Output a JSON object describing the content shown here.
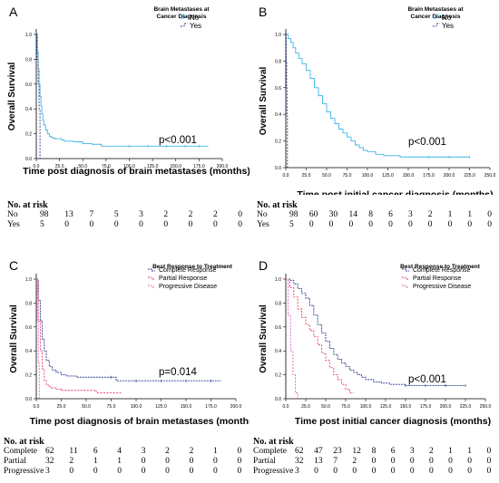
{
  "panels": [
    {
      "letter": "A",
      "legend_title": [
        "Brain Metastases at",
        "Cancer Diagnosis"
      ],
      "legend_items": [
        "No",
        "Yes"
      ],
      "ylabel": "Overall Survival",
      "xlabel": "Time post diagnosis of brain metastases (months)",
      "pvalue": "p<0.001",
      "x_ticks": [
        "0.0",
        "25.0",
        "50.0",
        "75.0",
        "100.0",
        "125.0",
        "150.0",
        "175.0",
        "200.0"
      ],
      "y_ticks": [
        "0.0",
        "0.2",
        "0.4",
        "0.6",
        "0.8",
        "1.0"
      ],
      "risk": {
        "title": "No. at risk",
        "rows": [
          {
            "label": "No",
            "values": [
              "98",
              "13",
              "7",
              "5",
              "3",
              "2",
              "2",
              "2",
              "0"
            ]
          },
          {
            "label": "Yes",
            "values": [
              "5",
              "0",
              "0",
              "0",
              "0",
              "0",
              "0",
              "0",
              "0"
            ]
          }
        ]
      }
    },
    {
      "letter": "B",
      "legend_title": [
        "Brain Metastases at",
        "Cancer Diagnosis"
      ],
      "legend_items": [
        "No",
        "Yes"
      ],
      "ylabel": "Overall Survival",
      "xlabel": "Time post initial cancer diagnosis (months)",
      "pvalue": "p<0.001",
      "x_ticks": [
        "0.0",
        "25.0",
        "50.0",
        "75.0",
        "100.0",
        "125.0",
        "150.0",
        "175.0",
        "200.0",
        "225.0",
        "250.0"
      ],
      "y_ticks": [
        "0.0",
        "0.2",
        "0.4",
        "0.6",
        "0.8",
        "1.0"
      ],
      "risk": {
        "title": "No. at risk",
        "rows": [
          {
            "label": "No",
            "values": [
              "98",
              "60",
              "30",
              "14",
              "8",
              "6",
              "3",
              "2",
              "1",
              "1",
              "0"
            ]
          },
          {
            "label": "Yes",
            "values": [
              "5",
              "0",
              "0",
              "0",
              "0",
              "0",
              "0",
              "0",
              "0",
              "0",
              "0"
            ]
          }
        ]
      }
    },
    {
      "letter": "C",
      "legend_title": [
        "Best Response to Treatment"
      ],
      "legend_items": [
        "Complete Response",
        "Partial Response",
        "Progressive Disease"
      ],
      "ylabel": "Overall Survival",
      "xlabel": "Time post diagnosis of brain metastases (months)",
      "pvalue": "p=0.014",
      "x_ticks": [
        "0.0",
        "25.0",
        "50.0",
        "75.0",
        "100.0",
        "125.0",
        "150.0",
        "175.0",
        "200.0"
      ],
      "y_ticks": [
        "0.0",
        "0.2",
        "0.4",
        "0.6",
        "0.8",
        "1.0"
      ],
      "risk": {
        "title": "No. at risk",
        "rows": [
          {
            "label": "Complete",
            "values": [
              "62",
              "11",
              "6",
              "4",
              "3",
              "2",
              "2",
              "1",
              "0"
            ]
          },
          {
            "label": "Partial",
            "values": [
              "32",
              "2",
              "1",
              "1",
              "0",
              "0",
              "0",
              "0",
              "0"
            ]
          },
          {
            "label": "Progressive",
            "values": [
              "3",
              "0",
              "0",
              "0",
              "0",
              "0",
              "0",
              "0",
              "0"
            ]
          }
        ]
      }
    },
    {
      "letter": "D",
      "legend_title": [
        "Best Response to Treatment"
      ],
      "legend_items": [
        "Complete Response",
        "Partial Response",
        "Progressive Disease"
      ],
      "ylabel": "Overall Survival",
      "xlabel": "Time post initial cancer diagnosis (months)",
      "pvalue": "p<0.001",
      "x_ticks": [
        "0.0",
        "25.0",
        "50.0",
        "75.0",
        "100.0",
        "125.0",
        "150.0",
        "175.0",
        "200.0",
        "225.0",
        "250.0"
      ],
      "y_ticks": [
        "0.0",
        "0.2",
        "0.4",
        "0.6",
        "0.8",
        "1.0"
      ],
      "risk": {
        "title": "No. at risk",
        "rows": [
          {
            "label": "Complete",
            "values": [
              "62",
              "47",
              "23",
              "12",
              "8",
              "6",
              "3",
              "2",
              "1",
              "1",
              "0"
            ]
          },
          {
            "label": "Partial",
            "values": [
              "32",
              "13",
              "7",
              "2",
              "0",
              "0",
              "0",
              "0",
              "0",
              "0",
              "0"
            ]
          },
          {
            "label": "Progressive",
            "values": [
              "3",
              "0",
              "0",
              "0",
              "0",
              "0",
              "0",
              "0",
              "0",
              "0",
              "0"
            ]
          }
        ]
      }
    }
  ],
  "chart_data": [
    {
      "type": "line",
      "title": "",
      "xlabel": "Time post diagnosis of brain metastases (months)",
      "ylabel": "Overall Survival",
      "xlim": [
        0,
        200
      ],
      "ylim": [
        0,
        1
      ],
      "colors": [
        "#3eb5e6",
        "#283c8c"
      ],
      "series": [
        {
          "name": "No",
          "x": [
            0,
            1,
            2,
            3,
            4,
            5,
            6,
            7,
            8,
            10,
            12,
            14,
            16,
            18,
            20,
            23,
            27,
            30,
            35,
            40,
            50,
            60,
            70,
            80,
            100,
            120,
            140,
            160,
            175,
            185
          ],
          "y": [
            1.0,
            0.86,
            0.72,
            0.6,
            0.5,
            0.42,
            0.36,
            0.31,
            0.27,
            0.23,
            0.2,
            0.18,
            0.17,
            0.165,
            0.16,
            0.16,
            0.15,
            0.14,
            0.14,
            0.135,
            0.12,
            0.115,
            0.1,
            0.1,
            0.1,
            0.1,
            0.1,
            0.1,
            0.1,
            0.1
          ]
        },
        {
          "name": "Yes",
          "x": [
            0,
            1,
            2,
            3,
            4
          ],
          "y": [
            1.0,
            0.8,
            0.6,
            0.4,
            0.0
          ]
        }
      ]
    },
    {
      "type": "line",
      "title": "",
      "xlabel": "Time post initial cancer diagnosis (months)",
      "ylabel": "Overall Survival",
      "xlim": [
        0,
        250
      ],
      "ylim": [
        0,
        1
      ],
      "colors": [
        "#3eb5e6",
        "#283c8c"
      ],
      "series": [
        {
          "name": "No",
          "x": [
            0,
            3,
            6,
            9,
            12,
            16,
            20,
            25,
            30,
            35,
            40,
            45,
            50,
            55,
            60,
            65,
            70,
            75,
            80,
            85,
            90,
            95,
            100,
            110,
            120,
            130,
            140,
            150,
            175,
            200,
            225
          ],
          "y": [
            1.0,
            0.97,
            0.94,
            0.9,
            0.86,
            0.82,
            0.78,
            0.73,
            0.67,
            0.6,
            0.54,
            0.48,
            0.42,
            0.37,
            0.33,
            0.29,
            0.26,
            0.23,
            0.2,
            0.17,
            0.15,
            0.13,
            0.12,
            0.1,
            0.09,
            0.09,
            0.08,
            0.08,
            0.08,
            0.08,
            0.08
          ]
        },
        {
          "name": "Yes",
          "x": [
            0,
            0.5,
            1,
            1.5,
            2
          ],
          "y": [
            1.0,
            0.8,
            0.6,
            0.4,
            0.0
          ]
        }
      ]
    },
    {
      "type": "line",
      "title": "",
      "xlabel": "Time post diagnosis of brain metastases (months)",
      "ylabel": "Overall Survival",
      "xlim": [
        0,
        200
      ],
      "ylim": [
        0,
        1
      ],
      "colors": [
        "#283c8c",
        "#e8336b",
        "#e060c0"
      ],
      "series": [
        {
          "name": "Complete Response",
          "x": [
            0,
            2,
            4,
            6,
            8,
            10,
            13,
            16,
            20,
            25,
            30,
            40,
            50,
            60,
            75,
            80,
            100,
            125,
            150,
            175,
            185
          ],
          "y": [
            1.0,
            0.82,
            0.65,
            0.5,
            0.4,
            0.32,
            0.27,
            0.24,
            0.22,
            0.2,
            0.19,
            0.18,
            0.18,
            0.18,
            0.18,
            0.15,
            0.15,
            0.15,
            0.15,
            0.15,
            0.15
          ]
        },
        {
          "name": "Partial Response",
          "x": [
            0,
            2,
            4,
            6,
            8,
            10,
            12,
            15,
            20,
            25,
            30,
            40,
            50,
            60,
            70,
            80,
            85
          ],
          "y": [
            1.0,
            0.65,
            0.4,
            0.25,
            0.15,
            0.12,
            0.1,
            0.09,
            0.08,
            0.07,
            0.07,
            0.07,
            0.07,
            0.05,
            0.05,
            0.05,
            0.05
          ]
        },
        {
          "name": "Progressive Disease",
          "x": [
            0,
            1,
            2,
            3
          ],
          "y": [
            1.0,
            0.65,
            0.3,
            0.0
          ]
        }
      ]
    },
    {
      "type": "line",
      "title": "",
      "xlabel": "Time post initial cancer diagnosis (months)",
      "ylabel": "Overall Survival",
      "xlim": [
        0,
        250
      ],
      "ylim": [
        0,
        1
      ],
      "colors": [
        "#283c8c",
        "#e8336b",
        "#e060c0"
      ],
      "series": [
        {
          "name": "Complete Response",
          "x": [
            0,
            5,
            10,
            15,
            20,
            25,
            30,
            35,
            40,
            45,
            50,
            55,
            60,
            65,
            70,
            75,
            80,
            85,
            90,
            95,
            100,
            110,
            120,
            130,
            150,
            175,
            200,
            225
          ],
          "y": [
            1.0,
            0.99,
            0.96,
            0.92,
            0.88,
            0.84,
            0.78,
            0.7,
            0.62,
            0.55,
            0.48,
            0.42,
            0.37,
            0.33,
            0.3,
            0.27,
            0.24,
            0.22,
            0.2,
            0.18,
            0.16,
            0.14,
            0.13,
            0.12,
            0.11,
            0.11,
            0.11,
            0.11
          ]
        },
        {
          "name": "Partial Response",
          "x": [
            0,
            5,
            10,
            15,
            20,
            25,
            30,
            35,
            40,
            45,
            50,
            55,
            60,
            65,
            70,
            75,
            80,
            85
          ],
          "y": [
            1.0,
            0.93,
            0.85,
            0.75,
            0.68,
            0.62,
            0.57,
            0.52,
            0.45,
            0.38,
            0.32,
            0.26,
            0.2,
            0.16,
            0.12,
            0.08,
            0.05,
            0.05
          ]
        },
        {
          "name": "Progressive Disease",
          "x": [
            0,
            3,
            6,
            9,
            12,
            15
          ],
          "y": [
            1.0,
            0.7,
            0.4,
            0.2,
            0.05,
            0.0
          ]
        }
      ]
    }
  ]
}
